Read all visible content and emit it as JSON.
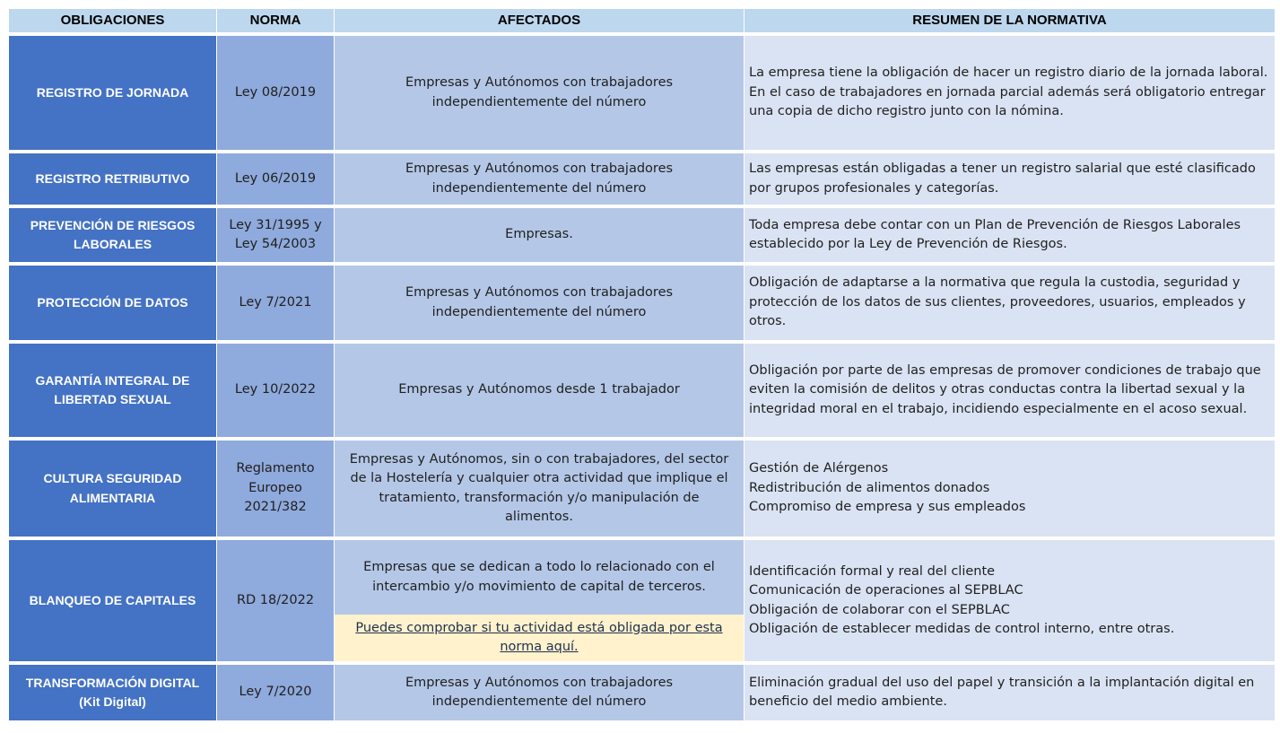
{
  "headers": [
    "OBLIGACIONES",
    "NORMA",
    "AFECTADOS",
    "RESUMEN DE LA NORMATIVA"
  ],
  "rows": [
    {
      "obligacion": "REGISTRO DE JORNADA",
      "norma": "Ley 08/2019",
      "afectados": "Empresas y Autónomos con trabajadores independientemente del número",
      "resumen": "La empresa tiene la obligación de hacer un registro diario de la jornada laboral. En el caso de trabajadores en jornada parcial además será obligatorio entregar una copia de dicho registro junto con la nómina."
    },
    {
      "obligacion": "REGISTRO RETRIBUTIVO",
      "norma": "Ley 06/2019",
      "afectados": "Empresas y Autónomos con trabajadores independientemente del número",
      "resumen": "Las empresas están obligadas a tener un registro salarial que esté clasificado por grupos profesionales y categorías."
    },
    {
      "obligacion": "PREVENCIÓN DE RIESGOS LABORALES",
      "norma": "Ley 31/1995 y Ley 54/2003",
      "afectados": "Empresas.",
      "resumen": "Toda empresa debe contar con un Plan de Prevención de Riesgos Laborales establecido por la Ley de Prevención de Riesgos."
    },
    {
      "obligacion": "PROTECCIÓN DE DATOS",
      "norma": "Ley 7/2021",
      "afectados": "Empresas y Autónomos con trabajadores independientemente del número",
      "resumen": "Obligación de adaptarse a la normativa que regula la custodia, seguridad y protección de los datos de sus clientes, proveedores, usuarios, empleados y otros."
    },
    {
      "obligacion": "GARANTÍA INTEGRAL DE LIBERTAD SEXUAL",
      "norma": "Ley 10/2022",
      "afectados": "Empresas y Autónomos desde 1 trabajador",
      "resumen": "Obligación por parte de las empresas de promover condiciones de trabajo que eviten la comisión de delitos y otras conductas contra la libertad sexual y la integridad moral en el trabajo, incidiendo especialmente en el acoso sexual."
    },
    {
      "obligacion": "CULTURA SEGURIDAD ALIMENTARIA",
      "norma": "Reglamento Europeo 2021/382",
      "afectados": "Empresas y Autónomos, sin o con trabajadores, del sector de la Hostelería y cualquier otra actividad que implique el tratamiento, transformación y/o manipulación de alimentos.",
      "resumen": "Gestión de Alérgenos\nRedistribución de alimentos donados\nCompromiso de empresa y sus empleados"
    },
    {
      "obligacion": "BLANQUEO DE CAPITALES",
      "norma": "RD 18/2022",
      "afectados": "Empresas que se dedican a todo lo relacionado con el intercambio y/o movimiento de capital de terceros.",
      "link": "Puedes comprobar si tu actividad está obligada por esta norma aquí.",
      "resumen": "Identificación formal y real del cliente\nComunicación de operaciones al SEPBLAC\nObligación de colaborar con el SEPBLAC\nObligación de establecer medidas de control interno, entre otras."
    },
    {
      "obligacion": "TRANSFORMACIÓN DIGITAL (Kit Digital)",
      "norma": "Ley 7/2020",
      "afectados": "Empresas y Autónomos con trabajadores independientemente del número",
      "resumen": "Eliminación gradual del uso del papel y transición a la implantación digital en beneficio del medio ambiente."
    }
  ]
}
